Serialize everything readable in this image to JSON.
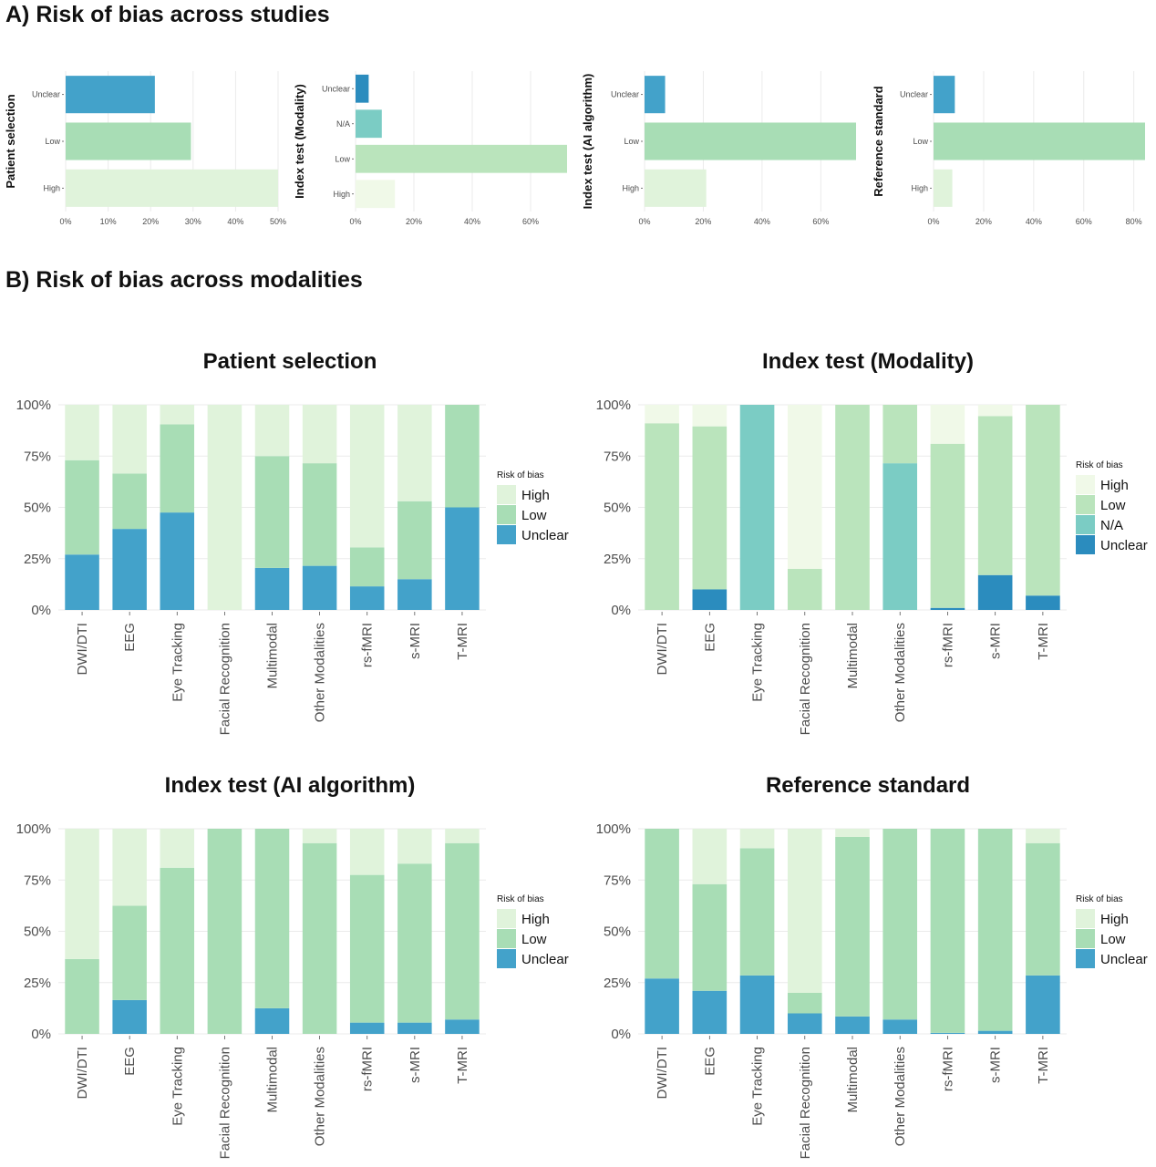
{
  "sections": {
    "a_title": "A) Risk of bias across studies",
    "b_title": "B) Risk of bias across modalities"
  },
  "colors": {
    "High": "#e0f3db",
    "Low": "#a8ddb5",
    "Unclear": "#43a2ca",
    "Unclear_dark": "#2b8cbe",
    "N/A": "#7bccc4",
    "High_light": "#f0f9e8",
    "Low_light": "#bae4bc"
  },
  "chart_data": [
    {
      "type": "bar",
      "orientation": "horizontal",
      "ylabel": "Patient selection",
      "categories": [
        "Unclear",
        "Low",
        "High"
      ],
      "values": [
        21,
        29.5,
        50
      ],
      "xlim": [
        0,
        50
      ],
      "xticks": [
        "0%",
        "10%",
        "20%",
        "30%",
        "40%",
        "50%"
      ],
      "xtick_values": [
        0,
        10,
        20,
        30,
        40,
        50
      ],
      "colors": [
        "#43a2ca",
        "#a8ddb5",
        "#e0f3db"
      ]
    },
    {
      "type": "bar",
      "orientation": "horizontal",
      "ylabel": "Index test (Modality)",
      "categories": [
        "Unclear",
        "N/A",
        "Low",
        "High"
      ],
      "values": [
        4.5,
        9,
        72.5,
        13.5
      ],
      "xlim": [
        0,
        72.5
      ],
      "xticks": [
        "0%",
        "20%",
        "40%",
        "60%"
      ],
      "xtick_values": [
        0,
        20,
        40,
        60
      ],
      "colors": [
        "#2b8cbe",
        "#7bccc4",
        "#bae4bc",
        "#f0f9e8"
      ]
    },
    {
      "type": "bar",
      "orientation": "horizontal",
      "ylabel": "Index test (AI algorithm)",
      "categories": [
        "Unclear",
        "Low",
        "High"
      ],
      "values": [
        7,
        72,
        21
      ],
      "xlim": [
        0,
        72
      ],
      "xticks": [
        "0%",
        "20%",
        "40%",
        "60%"
      ],
      "xtick_values": [
        0,
        20,
        40,
        60
      ],
      "colors": [
        "#43a2ca",
        "#a8ddb5",
        "#e0f3db"
      ]
    },
    {
      "type": "bar",
      "orientation": "horizontal",
      "ylabel": "Reference standard",
      "categories": [
        "Unclear",
        "Low",
        "High"
      ],
      "values": [
        8.5,
        84.5,
        7.5
      ],
      "xlim": [
        0,
        84.5
      ],
      "xticks": [
        "0%",
        "20%",
        "40%",
        "60%",
        "80%"
      ],
      "xtick_values": [
        0,
        20,
        40,
        60,
        80
      ],
      "colors": [
        "#43a2ca",
        "#a8ddb5",
        "#e0f3db"
      ]
    },
    {
      "type": "bar",
      "stacked": true,
      "title": "Patient selection",
      "categories": [
        "DWI/DTI",
        "EEG",
        "Eye Tracking",
        "Facial Recognition",
        "Multimodal",
        "Other Modalities",
        "rs-fMRI",
        "s-MRI",
        "T-MRI"
      ],
      "yticks": [
        "0%",
        "25%",
        "50%",
        "75%",
        "100%"
      ],
      "ylim": [
        0,
        100
      ],
      "legend_title": "Risk of bias",
      "legend_position": "right",
      "series": [
        {
          "name": "Unclear",
          "color": "#43a2ca",
          "values": [
            27,
            39.5,
            47.5,
            0,
            20.5,
            21.5,
            11.5,
            15,
            50
          ]
        },
        {
          "name": "Low",
          "color": "#a8ddb5",
          "values": [
            46,
            27,
            43,
            0,
            54.5,
            50,
            19,
            38,
            50
          ]
        },
        {
          "name": "High",
          "color": "#e0f3db",
          "values": [
            27,
            33.5,
            9.5,
            100,
            25,
            28.5,
            69.5,
            47,
            0
          ]
        }
      ],
      "legend_order": [
        "High",
        "Low",
        "Unclear"
      ]
    },
    {
      "type": "bar",
      "stacked": true,
      "title": "Index test (Modality)",
      "categories": [
        "DWI/DTI",
        "EEG",
        "Eye Tracking",
        "Facial Recognition",
        "Multimodal",
        "Other Modalities",
        "rs-fMRI",
        "s-MRI",
        "T-MRI"
      ],
      "yticks": [
        "0%",
        "25%",
        "50%",
        "75%",
        "100%"
      ],
      "ylim": [
        0,
        100
      ],
      "legend_title": "Risk of bias",
      "legend_position": "right",
      "series": [
        {
          "name": "Unclear",
          "color": "#2b8cbe",
          "values": [
            0,
            10,
            0,
            0,
            0,
            0,
            1,
            17,
            7
          ]
        },
        {
          "name": "N/A",
          "color": "#7bccc4",
          "values": [
            0,
            0,
            100,
            0,
            0,
            71.5,
            0,
            0,
            0
          ]
        },
        {
          "name": "Low",
          "color": "#bae4bc",
          "values": [
            91,
            79.5,
            0,
            20,
            100,
            28.5,
            80,
            77.5,
            93
          ]
        },
        {
          "name": "High",
          "color": "#f0f9e8",
          "values": [
            9,
            10.5,
            0,
            80,
            0,
            0,
            19,
            5.5,
            0
          ]
        }
      ],
      "legend_order": [
        "High",
        "Low",
        "N/A",
        "Unclear"
      ]
    },
    {
      "type": "bar",
      "stacked": true,
      "title": "Index test (AI algorithm)",
      "categories": [
        "DWI/DTI",
        "EEG",
        "Eye Tracking",
        "Facial Recognition",
        "Multimodal",
        "Other Modalities",
        "rs-fMRI",
        "s-MRI",
        "T-MRI"
      ],
      "yticks": [
        "0%",
        "25%",
        "50%",
        "75%",
        "100%"
      ],
      "ylim": [
        0,
        100
      ],
      "legend_title": "Risk of bias",
      "legend_position": "right",
      "series": [
        {
          "name": "Unclear",
          "color": "#43a2ca",
          "values": [
            0,
            16.5,
            0,
            0,
            12.5,
            0,
            5.5,
            5.5,
            7
          ]
        },
        {
          "name": "Low",
          "color": "#a8ddb5",
          "values": [
            36.5,
            46,
            81,
            100,
            87.5,
            93,
            72,
            77.5,
            86
          ]
        },
        {
          "name": "High",
          "color": "#e0f3db",
          "values": [
            63.5,
            37.5,
            19,
            0,
            0,
            7,
            22.5,
            17,
            7
          ]
        }
      ],
      "legend_order": [
        "High",
        "Low",
        "Unclear"
      ]
    },
    {
      "type": "bar",
      "stacked": true,
      "title": "Reference standard",
      "categories": [
        "DWI/DTI",
        "EEG",
        "Eye Tracking",
        "Facial Recognition",
        "Multimodal",
        "Other Modalities",
        "rs-fMRI",
        "s-MRI",
        "T-MRI"
      ],
      "yticks": [
        "0%",
        "25%",
        "50%",
        "75%",
        "100%"
      ],
      "ylim": [
        0,
        100
      ],
      "legend_title": "Risk of bias",
      "legend_position": "right",
      "series": [
        {
          "name": "Unclear",
          "color": "#43a2ca",
          "values": [
            27,
            21,
            28.5,
            10,
            8.5,
            7,
            0.5,
            1.5,
            28.5
          ]
        },
        {
          "name": "Low",
          "color": "#a8ddb5",
          "values": [
            73,
            52,
            62,
            10,
            87.5,
            93,
            99.5,
            98.5,
            64.5
          ]
        },
        {
          "name": "High",
          "color": "#e0f3db",
          "values": [
            0,
            27,
            9.5,
            80,
            4,
            0,
            0,
            0,
            7
          ]
        }
      ],
      "legend_order": [
        "High",
        "Low",
        "Unclear"
      ]
    }
  ]
}
